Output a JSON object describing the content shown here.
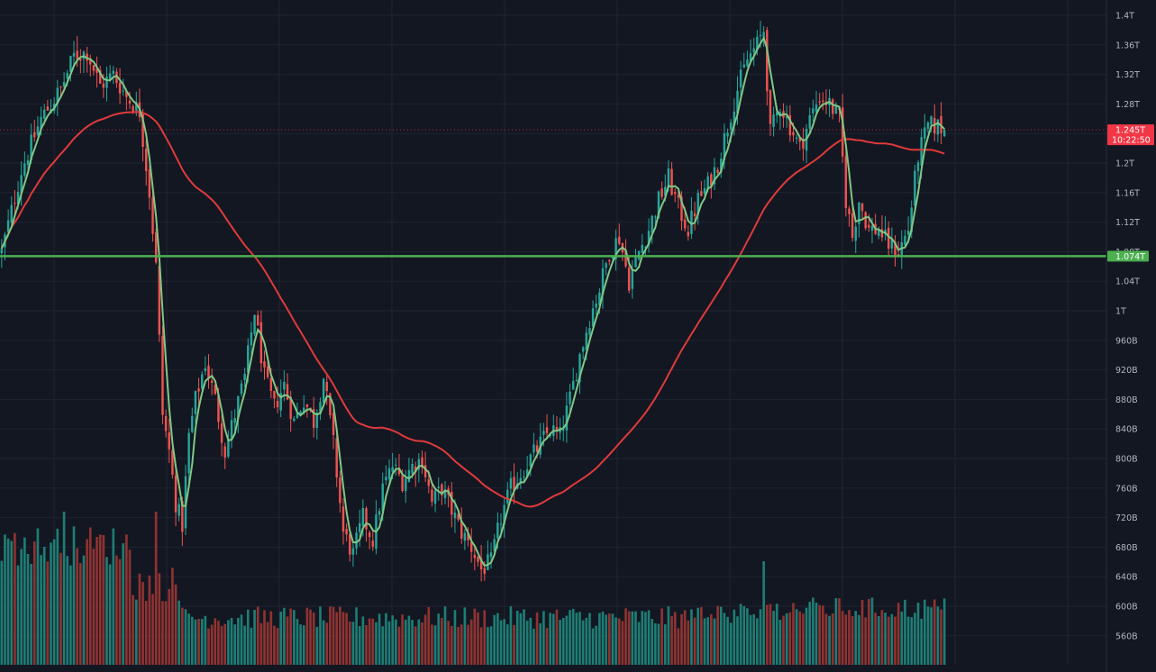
{
  "colors": {
    "background": "#131722",
    "grid": "#1f2431",
    "up": "#26a69a",
    "down": "#ef5350",
    "volume_up": "#1e7d74",
    "volume_down": "#8f3331",
    "ma_fast": "#81c784",
    "ma_slow": "#e03a3a",
    "horizontal_line": "#4caf50",
    "axis_text": "#b2b5be",
    "price_tag": "#f23645"
  },
  "chart_data": {
    "type": "candlestick",
    "price_axis": {
      "ticks": [
        "1.4T",
        "1.36T",
        "1.32T",
        "1.28T",
        "1.24T",
        "1.2T",
        "1.16T",
        "1.12T",
        "1.08T",
        "1.04T",
        "1T",
        "960B",
        "920B",
        "880B",
        "840B",
        "800B",
        "760B",
        "720B",
        "680B",
        "640B",
        "600B",
        "560B"
      ],
      "tick_values": [
        1400,
        1360,
        1320,
        1280,
        1240,
        1200,
        1160,
        1120,
        1080,
        1040,
        1000,
        960,
        920,
        880,
        840,
        800,
        760,
        720,
        680,
        640,
        600,
        560
      ],
      "ylim": [
        548,
        1416
      ],
      "unit": "billions"
    },
    "last_price": {
      "label": "1.245T",
      "countdown": "10:22:50",
      "value": 1245
    },
    "horizontal_line": {
      "label": "1.074T",
      "value": 1074
    },
    "price_path_keypoints": [
      [
        0,
        1080
      ],
      [
        6,
        1190
      ],
      [
        12,
        1260
      ],
      [
        18,
        1300
      ],
      [
        22,
        1345
      ],
      [
        26,
        1350
      ],
      [
        30,
        1305
      ],
      [
        34,
        1320
      ],
      [
        38,
        1290
      ],
      [
        42,
        1270
      ],
      [
        45,
        1160
      ],
      [
        47,
        1060
      ],
      [
        49,
        860
      ],
      [
        51,
        810
      ],
      [
        53,
        740
      ],
      [
        55,
        710
      ],
      [
        57,
        830
      ],
      [
        59,
        880
      ],
      [
        62,
        930
      ],
      [
        65,
        880
      ],
      [
        68,
        810
      ],
      [
        71,
        860
      ],
      [
        74,
        910
      ],
      [
        77,
        1000
      ],
      [
        80,
        910
      ],
      [
        83,
        870
      ],
      [
        86,
        900
      ],
      [
        89,
        850
      ],
      [
        92,
        880
      ],
      [
        95,
        850
      ],
      [
        98,
        910
      ],
      [
        101,
        820
      ],
      [
        104,
        700
      ],
      [
        107,
        670
      ],
      [
        110,
        720
      ],
      [
        113,
        690
      ],
      [
        116,
        760
      ],
      [
        119,
        790
      ],
      [
        122,
        770
      ],
      [
        125,
        790
      ],
      [
        128,
        800
      ],
      [
        131,
        740
      ],
      [
        134,
        760
      ],
      [
        137,
        730
      ],
      [
        140,
        700
      ],
      [
        143,
        680
      ],
      [
        146,
        650
      ],
      [
        149,
        660
      ],
      [
        152,
        720
      ],
      [
        155,
        760
      ],
      [
        158,
        780
      ],
      [
        161,
        800
      ],
      [
        164,
        820
      ],
      [
        167,
        840
      ],
      [
        170,
        830
      ],
      [
        173,
        880
      ],
      [
        176,
        940
      ],
      [
        179,
        990
      ],
      [
        182,
        1030
      ],
      [
        185,
        1080
      ],
      [
        188,
        1100
      ],
      [
        191,
        1040
      ],
      [
        194,
        1080
      ],
      [
        197,
        1110
      ],
      [
        200,
        1150
      ],
      [
        203,
        1180
      ],
      [
        206,
        1140
      ],
      [
        209,
        1110
      ],
      [
        212,
        1150
      ],
      [
        215,
        1170
      ],
      [
        218,
        1200
      ],
      [
        221,
        1250
      ],
      [
        224,
        1300
      ],
      [
        227,
        1340
      ],
      [
        230,
        1360
      ],
      [
        232,
        1380
      ],
      [
        234,
        1240
      ],
      [
        237,
        1280
      ],
      [
        240,
        1250
      ],
      [
        243,
        1220
      ],
      [
        246,
        1260
      ],
      [
        249,
        1290
      ],
      [
        252,
        1280
      ],
      [
        255,
        1260
      ],
      [
        257,
        1150
      ],
      [
        259,
        1100
      ],
      [
        261,
        1150
      ],
      [
        264,
        1110
      ],
      [
        267,
        1110
      ],
      [
        270,
        1090
      ],
      [
        273,
        1080
      ],
      [
        276,
        1110
      ],
      [
        279,
        1210
      ],
      [
        282,
        1250
      ],
      [
        285,
        1250
      ],
      [
        287,
        1245
      ]
    ],
    "series": [
      {
        "type": "candles",
        "count": 288
      },
      {
        "type": "ma_line",
        "period": 4
      },
      {
        "type": "ma_line",
        "period": 60
      },
      {
        "type": "volume_bars"
      }
    ]
  }
}
